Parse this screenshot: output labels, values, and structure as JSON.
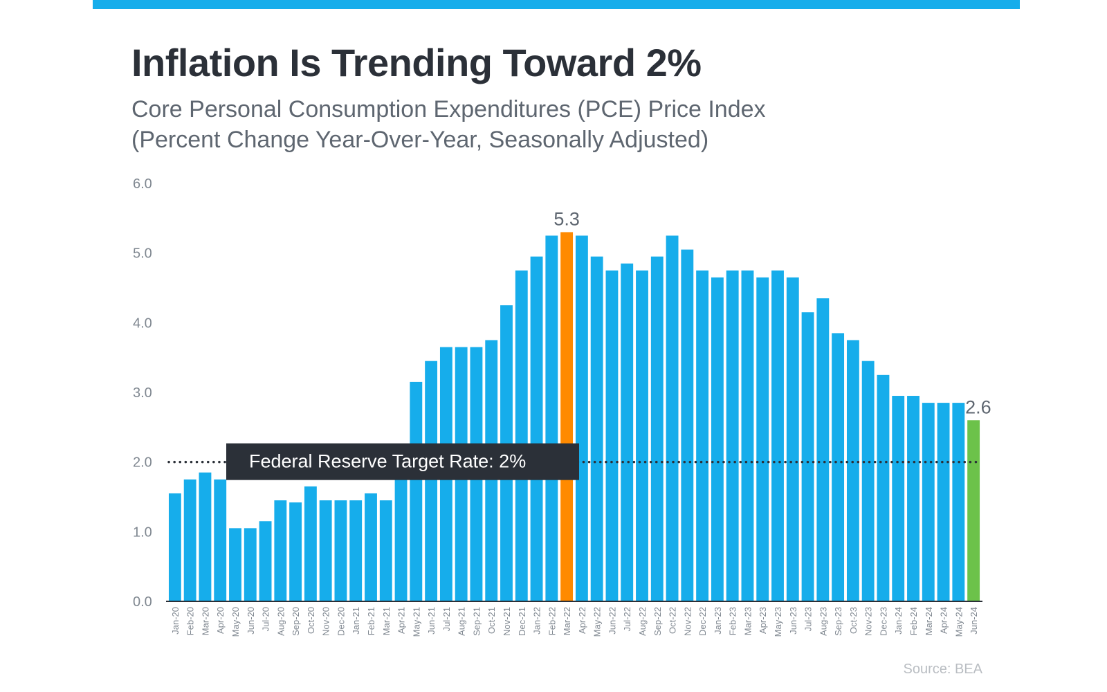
{
  "header": {
    "title": "Inflation Is Trending Toward 2%",
    "subtitle_line1": "Core Personal Consumption Expenditures (PCE) Price Index",
    "subtitle_line2": "(Percent Change Year-Over-Year, Seasonally Adjusted)"
  },
  "footer": {
    "source": "Source: BEA"
  },
  "colors": {
    "accent_bar": "#16ADEB",
    "bar": "#16ADEB",
    "peak_bar": "#FF8A00",
    "latest_bar": "#6CC24A",
    "target_box": "#2B3038",
    "axis_text": "#7F8790"
  },
  "chart_data": {
    "type": "bar",
    "title": "Inflation Is Trending Toward 2%",
    "xlabel": "",
    "ylabel": "",
    "ylim": [
      0,
      6
    ],
    "yticks": [
      "0.0",
      "1.0",
      "2.0",
      "3.0",
      "4.0",
      "5.0",
      "6.0"
    ],
    "grid": false,
    "categories": [
      "Jan-20",
      "Feb-20",
      "Mar-20",
      "Apr-20",
      "May-20",
      "Jun-20",
      "Jul-20",
      "Aug-20",
      "Sep-20",
      "Oct-20",
      "Nov-20",
      "Dec-20",
      "Jan-21",
      "Feb-21",
      "Mar-21",
      "Apr-21",
      "May-21",
      "Jun-21",
      "Jul-21",
      "Aug-21",
      "Sep-21",
      "Oct-21",
      "Nov-21",
      "Dec-21",
      "Jan-22",
      "Feb-22",
      "Mar-22",
      "Apr-22",
      "May-22",
      "Jun-22",
      "Jul-22",
      "Aug-22",
      "Sep-22",
      "Oct-22",
      "Nov-22",
      "Dec-22",
      "Jan-23",
      "Feb-23",
      "Mar-23",
      "Apr-23",
      "May-23",
      "Jun-23",
      "Jul-23",
      "Aug-23",
      "Sep-23",
      "Oct-23",
      "Nov-23",
      "Dec-23",
      "Jan-24",
      "Feb-24",
      "Mar-24",
      "Apr-24",
      "May-24",
      "Jun-24"
    ],
    "values": [
      1.55,
      1.75,
      1.85,
      1.75,
      1.05,
      1.05,
      1.15,
      1.45,
      1.42,
      1.65,
      1.45,
      1.45,
      1.45,
      1.55,
      1.45,
      2.0,
      3.15,
      3.45,
      3.65,
      3.65,
      3.65,
      3.75,
      4.25,
      4.75,
      4.95,
      5.25,
      5.3,
      5.25,
      4.95,
      4.75,
      4.85,
      4.75,
      4.95,
      5.25,
      5.05,
      4.75,
      4.65,
      4.75,
      4.75,
      4.65,
      4.75,
      4.65,
      4.15,
      4.35,
      3.85,
      3.75,
      3.45,
      3.25,
      2.95,
      2.95,
      2.85,
      2.85,
      2.85,
      2.6
    ],
    "highlights": [
      {
        "category": "Mar-22",
        "label": "5.3",
        "color": "#FF8A00"
      },
      {
        "category": "Jun-24",
        "label": "2.6",
        "color": "#6CC24A"
      }
    ],
    "reference_line": {
      "value": 2.0,
      "label": "Federal Reserve Target Rate: 2%",
      "style": "dotted"
    }
  }
}
